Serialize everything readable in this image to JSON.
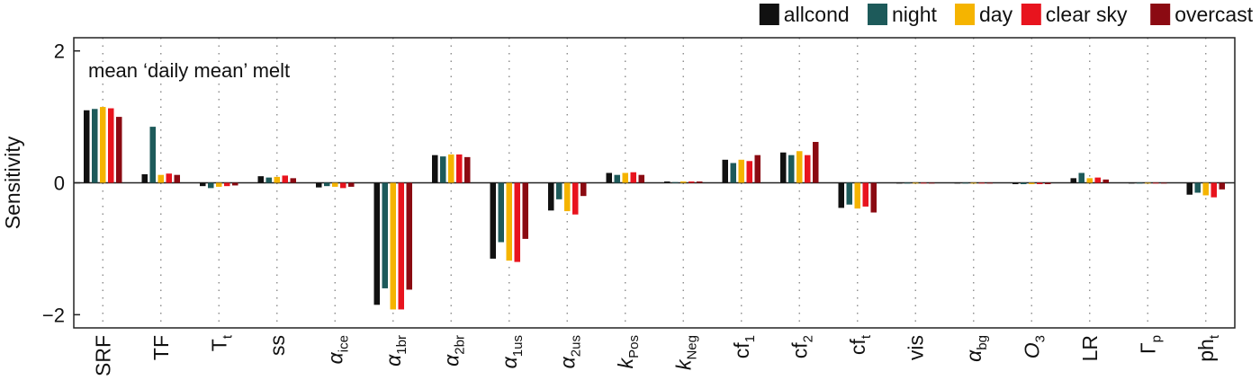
{
  "chart_data": {
    "type": "bar",
    "title": "",
    "annotation": "mean ‘daily mean’ melt",
    "xlabel": "",
    "ylabel": "Sensitivity",
    "ylim": [
      -2.2,
      2.2
    ],
    "yticks": [
      -2,
      0,
      2
    ],
    "ytick_labels": [
      "−2",
      "0",
      "2"
    ],
    "grid": "vertical dotted",
    "legend_position": "top-right",
    "categories": [
      {
        "base": "SRF",
        "sub": "",
        "italic": false
      },
      {
        "base": "TF",
        "sub": "",
        "italic": false
      },
      {
        "base": "T",
        "sub": "t",
        "italic": false
      },
      {
        "base": "ss",
        "sub": "",
        "italic": false
      },
      {
        "base": "α",
        "sub": "ice",
        "italic": true
      },
      {
        "base": "α",
        "sub": "1br",
        "italic": true
      },
      {
        "base": "α",
        "sub": "2br",
        "italic": true
      },
      {
        "base": "α",
        "sub": "1us",
        "italic": true
      },
      {
        "base": "α",
        "sub": "2us",
        "italic": true
      },
      {
        "base": "k",
        "sub": "Pos",
        "italic": true
      },
      {
        "base": "k",
        "sub": "Neg",
        "italic": true
      },
      {
        "base": "cf",
        "sub": "1",
        "italic": false
      },
      {
        "base": "cf",
        "sub": "2",
        "italic": false
      },
      {
        "base": "cf",
        "sub": "t",
        "italic": false
      },
      {
        "base": "vis",
        "sub": "",
        "italic": false
      },
      {
        "base": "α",
        "sub": "bg",
        "italic": true
      },
      {
        "base": "O",
        "sub": "3",
        "italic": true
      },
      {
        "base": "LR",
        "sub": "",
        "italic": false
      },
      {
        "base": "Γ",
        "sub": "p",
        "italic": false
      },
      {
        "base": "ph",
        "sub": "t",
        "italic": false
      }
    ],
    "series": [
      {
        "name": "allcond",
        "color": "#111111",
        "values": [
          1.1,
          0.13,
          -0.05,
          0.1,
          -0.07,
          -1.85,
          0.42,
          -1.15,
          -0.42,
          0.15,
          0.02,
          0.35,
          0.46,
          -0.38,
          0.0,
          0.0,
          -0.02,
          0.07,
          -0.01,
          -0.18
        ]
      },
      {
        "name": "night",
        "color": "#1d5a5a",
        "values": [
          1.12,
          0.85,
          -0.08,
          0.08,
          -0.05,
          -1.6,
          0.4,
          -0.9,
          -0.25,
          0.12,
          0.01,
          0.3,
          0.42,
          -0.33,
          0.0,
          0.0,
          -0.02,
          0.15,
          -0.01,
          -0.15
        ]
      },
      {
        "name": "day",
        "color": "#f5b400",
        "values": [
          1.15,
          0.12,
          -0.06,
          0.09,
          -0.06,
          -1.92,
          0.43,
          -1.18,
          -0.43,
          0.15,
          0.02,
          0.35,
          0.48,
          -0.39,
          0.0,
          0.0,
          -0.02,
          0.07,
          -0.01,
          -0.19
        ]
      },
      {
        "name": "clear sky",
        "color": "#e8141e",
        "values": [
          1.13,
          0.14,
          -0.05,
          0.11,
          -0.08,
          -1.92,
          0.43,
          -1.2,
          -0.48,
          0.16,
          0.02,
          0.33,
          0.42,
          -0.36,
          0.0,
          0.0,
          -0.02,
          0.08,
          -0.01,
          -0.22
        ]
      },
      {
        "name": "overcast",
        "color": "#8b0a12",
        "values": [
          1.0,
          0.12,
          -0.04,
          0.07,
          -0.06,
          -1.62,
          0.39,
          -0.85,
          -0.2,
          0.12,
          0.02,
          0.42,
          0.62,
          -0.45,
          0.0,
          0.0,
          -0.02,
          0.05,
          -0.01,
          -0.1
        ]
      }
    ]
  }
}
